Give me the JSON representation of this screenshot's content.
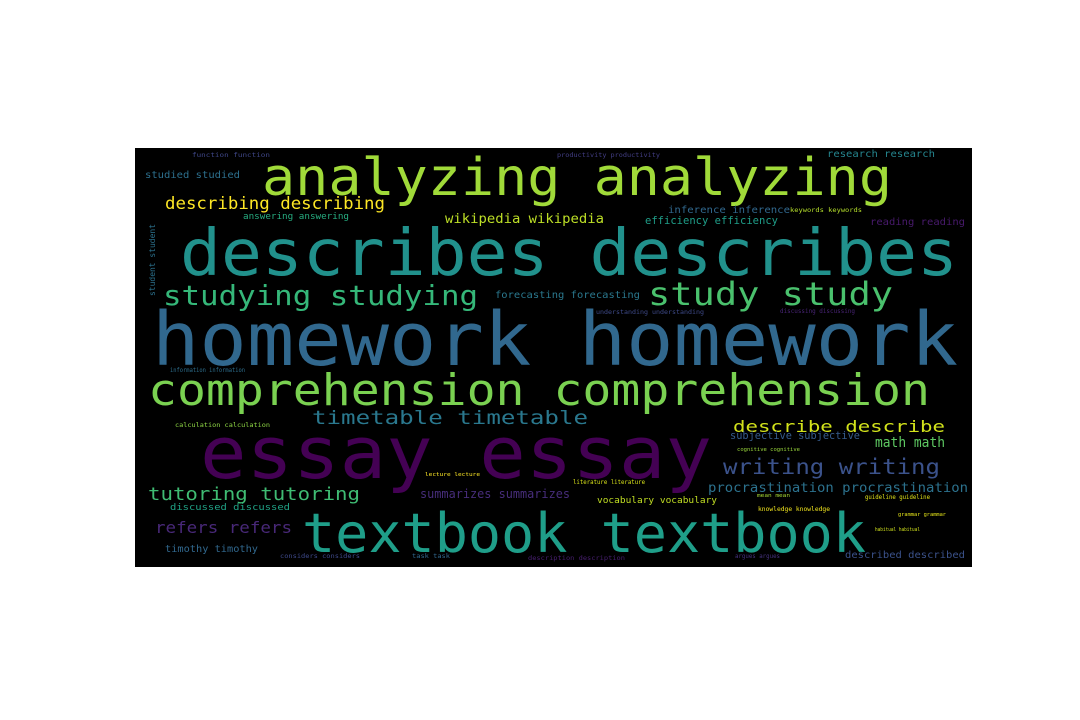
{
  "words": [
    {
      "text": "analyzing analyzing",
      "color": "#a0da39"
    },
    {
      "text": "describes describes",
      "color": "#21918c"
    },
    {
      "text": "homework homework",
      "color": "#31688e"
    },
    {
      "text": "comprehension comprehension",
      "color": "#7ad151"
    },
    {
      "text": "essay essay",
      "color": "#440154"
    },
    {
      "text": "textbook textbook",
      "color": "#1f9e89"
    },
    {
      "text": "studying studying",
      "color": "#35b779"
    },
    {
      "text": "study study",
      "color": "#4ac16d"
    },
    {
      "text": "describing describing",
      "color": "#fde725"
    },
    {
      "text": "wikipedia wikipedia",
      "color": "#bddf26"
    },
    {
      "text": "timetable timetable",
      "color": "#2a788e"
    },
    {
      "text": "describe describe",
      "color": "#d2e21b"
    },
    {
      "text": "math math",
      "color": "#5ec962"
    },
    {
      "text": "writing writing",
      "color": "#3b528b"
    },
    {
      "text": "tutoring tutoring",
      "color": "#3fbc73"
    },
    {
      "text": "procrastination procrastination",
      "color": "#2c728e"
    },
    {
      "text": "refers refers",
      "color": "#482878"
    },
    {
      "text": "summarizes summarizes",
      "color": "#472d7b"
    },
    {
      "text": "forecasting forecasting",
      "color": "#2a788e"
    },
    {
      "text": "efficiency efficiency",
      "color": "#1f9e89"
    },
    {
      "text": "studied studied",
      "color": "#2d708e"
    },
    {
      "text": "research research",
      "color": "#25858e"
    },
    {
      "text": "answering answering",
      "color": "#27ad81"
    },
    {
      "text": "inference inference",
      "color": "#31688e"
    },
    {
      "text": "reading reading",
      "color": "#481a6c"
    },
    {
      "text": "subjective subjective",
      "color": "#365c8d"
    },
    {
      "text": "vocabulary vocabulary",
      "color": "#c2df23"
    },
    {
      "text": "discussed discussed",
      "color": "#20a386"
    },
    {
      "text": "timothy timothy",
      "color": "#31688e"
    },
    {
      "text": "described described",
      "color": "#3b528b"
    },
    {
      "text": "student student",
      "color": "#2c728e"
    },
    {
      "text": "keywords keywords",
      "color": "#b5de2b"
    },
    {
      "text": "understanding understanding",
      "color": "#3e4a89"
    },
    {
      "text": "discussing discussing",
      "color": "#482475"
    },
    {
      "text": "information information",
      "color": "#2e6f8e"
    },
    {
      "text": "calculation calculation",
      "color": "#8fd744"
    },
    {
      "text": "cognitive cognitive",
      "color": "#9bd93c"
    },
    {
      "text": "literature literature",
      "color": "#d8e219"
    },
    {
      "text": "lecture lecture",
      "color": "#fde725"
    },
    {
      "text": "guideline guideline",
      "color": "#e2e418"
    },
    {
      "text": "knowledge knowledge",
      "color": "#f1e51d"
    },
    {
      "text": "grammar grammar",
      "color": "#e5e419"
    },
    {
      "text": "mean mean",
      "color": "#a8db34"
    },
    {
      "text": "habitual habitual",
      "color": "#d0e11c"
    },
    {
      "text": "considers considers",
      "color": "#3e4989"
    },
    {
      "text": "productivity productivity",
      "color": "#433e85"
    },
    {
      "text": "function function",
      "color": "#3f4788"
    },
    {
      "text": "argues argues",
      "color": "#46327e"
    },
    {
      "text": "task task",
      "color": "#31688e"
    },
    {
      "text": "description description",
      "color": "#481f70"
    }
  ]
}
